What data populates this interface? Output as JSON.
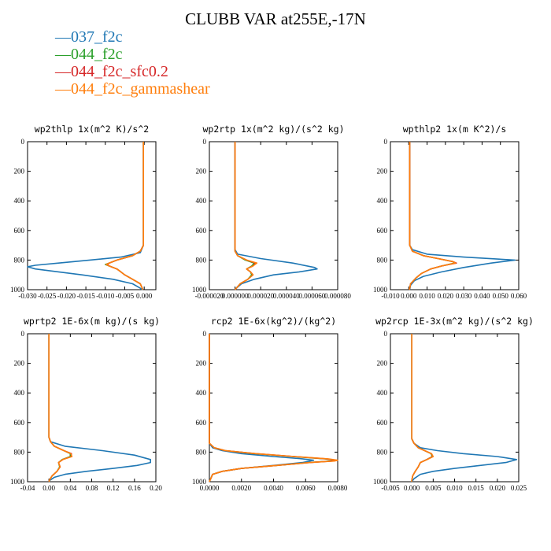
{
  "title": "CLUBB VAR at255E,-17N",
  "colors": {
    "037_f2c": "#1f77b4",
    "044_f2c": "#2ca02c",
    "044_f2c_sfc0.2": "#d62728",
    "044_f2c_gammashear": "#ff7f0e"
  },
  "legend": [
    {
      "name": "037_f2c",
      "color": "#1f77b4"
    },
    {
      "name": "044_f2c",
      "color": "#2ca02c"
    },
    {
      "name": "044_f2c_sfc0.2",
      "color": "#d62728"
    },
    {
      "name": "044_f2c_gammashear",
      "color": "#ff7f0e"
    }
  ],
  "chart_data": [
    {
      "type": "line",
      "title": "wp2thlp  1x(m^2 K)/s^2",
      "xlim": [
        -0.03,
        0.003
      ],
      "ylim": [
        1000,
        0
      ],
      "xticks": [
        "-0.030",
        "-0.025",
        "-0.020",
        "-0.015",
        "-0.010",
        "-0.005",
        "0.000"
      ],
      "xtick_values": [
        -0.03,
        -0.025,
        -0.02,
        -0.015,
        -0.01,
        -0.005,
        0.0
      ],
      "yticks": [
        0,
        200,
        400,
        600,
        800,
        1000
      ],
      "series": [
        {
          "name": "037_f2c",
          "y": [
            0,
            700,
            750,
            780,
            800,
            820,
            835,
            845,
            860,
            880,
            900,
            930,
            960,
            990,
            1000
          ],
          "x": [
            -0.0002,
            -0.0002,
            -0.001,
            -0.006,
            -0.014,
            -0.022,
            -0.028,
            -0.03,
            -0.028,
            -0.022,
            -0.016,
            -0.008,
            -0.003,
            -0.001,
            -0.0005
          ]
        },
        {
          "name": "044_f2c",
          "y": [
            0,
            700,
            740,
            770,
            800,
            820,
            830,
            840,
            860,
            880,
            900,
            930,
            960,
            990,
            1000
          ],
          "x": [
            -0.0002,
            -0.0002,
            -0.001,
            -0.003,
            -0.007,
            -0.009,
            -0.01,
            -0.009,
            -0.007,
            -0.006,
            -0.005,
            -0.003,
            -0.001,
            -0.0005,
            -0.0003
          ]
        },
        {
          "name": "044_f2c_sfc0.2",
          "y": [
            0,
            700,
            740,
            770,
            800,
            820,
            830,
            840,
            860,
            880,
            900,
            930,
            960,
            990,
            1000
          ],
          "x": [
            -0.0002,
            -0.0002,
            -0.001,
            -0.003,
            -0.007,
            -0.009,
            -0.0095,
            -0.009,
            -0.007,
            -0.006,
            -0.005,
            -0.003,
            -0.001,
            -0.0005,
            -0.0003
          ]
        },
        {
          "name": "044_f2c_gammashear",
          "y": [
            0,
            700,
            740,
            770,
            800,
            820,
            830,
            840,
            860,
            880,
            900,
            930,
            960,
            990,
            1000
          ],
          "x": [
            -0.0002,
            -0.0002,
            -0.001,
            -0.003,
            -0.007,
            -0.009,
            -0.0098,
            -0.009,
            -0.007,
            -0.006,
            -0.005,
            -0.003,
            -0.001,
            -0.0005,
            -0.0003
          ]
        }
      ]
    },
    {
      "type": "line",
      "title": "wp2rtp  1x(m^2 kg)/(s^2 kg)",
      "xlim": [
        -2e-05,
        8e-05
      ],
      "ylim": [
        1000,
        0
      ],
      "xticks": [
        "-0.000020",
        "0.000000",
        "0.000020",
        "0.000040",
        "0.000060",
        "0.000080"
      ],
      "xtick_values": [
        -2e-05,
        0.0,
        2e-05,
        4e-05,
        6e-05,
        8e-05
      ],
      "yticks": [
        0,
        200,
        400,
        600,
        800,
        1000
      ],
      "series": [
        {
          "name": "037_f2c",
          "y": [
            0,
            730,
            760,
            790,
            820,
            850,
            860,
            880,
            900,
            930,
            960,
            990,
            1000
          ],
          "x": [
            0.0,
            0.0,
            2e-06,
            2e-05,
            4.5e-05,
            6.2e-05,
            6.4e-05,
            5e-05,
            3e-05,
            1.5e-05,
            5e-06,
            1e-06,
            0.0
          ]
        },
        {
          "name": "044_f2c",
          "y": [
            0,
            740,
            770,
            800,
            820,
            840,
            860,
            880,
            900,
            930,
            960,
            990,
            1000
          ],
          "x": [
            0.0,
            0.0,
            2e-06,
            8e-06,
            1.5e-05,
            1.3e-05,
            9e-06,
            1.2e-05,
            1.3e-05,
            1e-05,
            4e-06,
            1e-06,
            0.0
          ]
        },
        {
          "name": "044_f2c_sfc0.2",
          "y": [
            0,
            740,
            770,
            800,
            820,
            840,
            860,
            880,
            900,
            930,
            960,
            990,
            1000
          ],
          "x": [
            0.0,
            0.0,
            2e-06,
            9e-06,
            1.6e-05,
            1.4e-05,
            9e-06,
            1.2e-05,
            1.4e-05,
            1e-05,
            4e-06,
            1e-06,
            0.0
          ]
        },
        {
          "name": "044_f2c_gammashear",
          "y": [
            0,
            740,
            770,
            800,
            820,
            840,
            860,
            880,
            900,
            930,
            960,
            990,
            1000
          ],
          "x": [
            0.0,
            0.0,
            2e-06,
            9e-06,
            1.7e-05,
            1.4e-05,
            9e-06,
            1.2e-05,
            1.4e-05,
            1e-05,
            4e-06,
            1e-06,
            0.0
          ]
        }
      ]
    },
    {
      "type": "line",
      "title": "wpthlp2  1x(m K^2)/s",
      "xlim": [
        -0.01,
        0.06
      ],
      "ylim": [
        1000,
        0
      ],
      "xticks": [
        "-0.010",
        "0.000",
        "0.010",
        "0.020",
        "0.030",
        "0.040",
        "0.050",
        "0.060"
      ],
      "xtick_values": [
        -0.01,
        0.0,
        0.01,
        0.02,
        0.03,
        0.04,
        0.05,
        0.06
      ],
      "yticks": [
        0,
        200,
        400,
        600,
        800,
        1000
      ],
      "series": [
        {
          "name": "037_f2c",
          "y": [
            0,
            700,
            730,
            760,
            780,
            800,
            820,
            850,
            880,
            910,
            940,
            970,
            1000
          ],
          "x": [
            0.0005,
            0.0005,
            0.002,
            0.01,
            0.03,
            0.058,
            0.045,
            0.03,
            0.018,
            0.008,
            0.003,
            0.001,
            0.0005
          ]
        },
        {
          "name": "044_f2c",
          "y": [
            0,
            700,
            740,
            770,
            790,
            810,
            820,
            840,
            860,
            890,
            920,
            960,
            990,
            1000
          ],
          "x": [
            0.0005,
            0.0005,
            0.002,
            0.008,
            0.016,
            0.024,
            0.025,
            0.018,
            0.012,
            0.007,
            0.004,
            0.001,
            0.0005,
            0.0003
          ]
        },
        {
          "name": "044_f2c_sfc0.2",
          "y": [
            0,
            700,
            740,
            770,
            790,
            810,
            820,
            840,
            860,
            890,
            920,
            960,
            990,
            1000
          ],
          "x": [
            0.0005,
            0.0005,
            0.002,
            0.008,
            0.016,
            0.024,
            0.026,
            0.018,
            0.012,
            0.007,
            0.004,
            0.001,
            0.0005,
            0.0003
          ]
        },
        {
          "name": "044_f2c_gammashear",
          "y": [
            0,
            700,
            740,
            770,
            790,
            810,
            820,
            840,
            860,
            890,
            920,
            960,
            990,
            1000
          ],
          "x": [
            0.0005,
            0.0005,
            0.002,
            0.008,
            0.016,
            0.024,
            0.0255,
            0.018,
            0.012,
            0.007,
            0.004,
            0.001,
            0.0005,
            0.0003
          ]
        }
      ]
    },
    {
      "type": "line",
      "title": "wprtp2  1E-6x(m kg)/(s kg)",
      "xlim": [
        -0.04,
        0.2
      ],
      "ylim": [
        1000,
        0
      ],
      "xticks": [
        "-0.04",
        "0.00",
        "0.04",
        "0.08",
        "0.12",
        "0.16",
        "0.20"
      ],
      "xtick_values": [
        -0.04,
        0.0,
        0.04,
        0.08,
        0.12,
        0.16,
        0.2
      ],
      "yticks": [
        0,
        200,
        400,
        600,
        800,
        1000
      ],
      "series": [
        {
          "name": "037_f2c",
          "y": [
            0,
            700,
            730,
            760,
            790,
            820,
            850,
            870,
            890,
            910,
            930,
            950,
            970,
            990,
            1000
          ],
          "x": [
            0.0,
            0.0,
            0.003,
            0.03,
            0.1,
            0.16,
            0.19,
            0.19,
            0.165,
            0.12,
            0.07,
            0.03,
            0.01,
            0.002,
            0.0
          ]
        },
        {
          "name": "044_f2c",
          "y": [
            0,
            700,
            730,
            760,
            790,
            810,
            830,
            850,
            870,
            900,
            930,
            960,
            990,
            1000
          ],
          "x": [
            0.0,
            0.0,
            0.003,
            0.01,
            0.028,
            0.04,
            0.04,
            0.025,
            0.018,
            0.02,
            0.015,
            0.006,
            0.001,
            0.0
          ]
        },
        {
          "name": "044_f2c_sfc0.2",
          "y": [
            0,
            700,
            730,
            760,
            790,
            810,
            830,
            850,
            870,
            900,
            930,
            960,
            990,
            1000
          ],
          "x": [
            0.0,
            0.0,
            0.003,
            0.01,
            0.028,
            0.042,
            0.042,
            0.026,
            0.018,
            0.021,
            0.015,
            0.006,
            0.001,
            0.0
          ]
        },
        {
          "name": "044_f2c_gammashear",
          "y": [
            0,
            700,
            730,
            760,
            790,
            810,
            830,
            850,
            870,
            900,
            930,
            960,
            990,
            1000
          ],
          "x": [
            0.0,
            0.0,
            0.003,
            0.01,
            0.028,
            0.041,
            0.043,
            0.026,
            0.018,
            0.021,
            0.015,
            0.006,
            0.001,
            0.0
          ]
        }
      ]
    },
    {
      "type": "line",
      "title": "rcp2  1E-6x(kg^2)/(kg^2)",
      "xlim": [
        0,
        0.008
      ],
      "ylim": [
        1000,
        0
      ],
      "xticks": [
        "0.0000",
        "0.0020",
        "0.0040",
        "0.0060",
        "0.0080"
      ],
      "xtick_values": [
        0.0,
        0.002,
        0.004,
        0.006,
        0.008
      ],
      "yticks": [
        0,
        200,
        400,
        600,
        800,
        1000
      ],
      "series": [
        {
          "name": "037_f2c",
          "y": [
            0,
            740,
            770,
            790,
            810,
            830,
            845,
            855,
            870,
            890,
            910,
            930,
            950,
            1000
          ],
          "x": [
            0.0,
            0.0,
            0.0002,
            0.0008,
            0.002,
            0.004,
            0.0058,
            0.0065,
            0.0058,
            0.004,
            0.002,
            0.0008,
            0.0002,
            0.0
          ]
        },
        {
          "name": "044_f2c",
          "y": [
            0,
            740,
            770,
            790,
            810,
            830,
            845,
            855,
            860,
            870,
            890,
            910,
            930,
            950,
            1000
          ],
          "x": [
            0.0,
            0.0,
            0.0003,
            0.001,
            0.0028,
            0.0052,
            0.0072,
            0.0078,
            0.0076,
            0.0062,
            0.0042,
            0.002,
            0.0008,
            0.0002,
            0.0
          ]
        },
        {
          "name": "044_f2c_sfc0.2",
          "y": [
            0,
            740,
            770,
            790,
            810,
            830,
            845,
            855,
            860,
            870,
            890,
            910,
            930,
            950,
            1000
          ],
          "x": [
            0.0,
            0.0,
            0.0003,
            0.001,
            0.0029,
            0.0053,
            0.0073,
            0.0079,
            0.0077,
            0.0063,
            0.0042,
            0.002,
            0.0008,
            0.0002,
            0.0
          ]
        },
        {
          "name": "044_f2c_gammashear",
          "y": [
            0,
            740,
            770,
            790,
            810,
            830,
            845,
            855,
            860,
            870,
            890,
            910,
            930,
            950,
            1000
          ],
          "x": [
            0.0,
            0.0,
            0.0003,
            0.001,
            0.0029,
            0.0053,
            0.0074,
            0.008,
            0.0078,
            0.0063,
            0.0042,
            0.002,
            0.0008,
            0.0002,
            0.0
          ]
        }
      ]
    },
    {
      "type": "line",
      "title": "wp2rcp  1E-3x(m^2 kg)/(s^2 kg)",
      "xlim": [
        -0.005,
        0.025
      ],
      "ylim": [
        1000,
        0
      ],
      "xticks": [
        "-0.005",
        "0.000",
        "0.005",
        "0.010",
        "0.015",
        "0.020",
        "0.025"
      ],
      "xtick_values": [
        -0.005,
        0.0,
        0.005,
        0.01,
        0.015,
        0.02,
        0.025
      ],
      "yticks": [
        0,
        200,
        400,
        600,
        800,
        1000
      ],
      "series": [
        {
          "name": "037_f2c",
          "y": [
            0,
            710,
            740,
            770,
            790,
            810,
            830,
            850,
            870,
            890,
            910,
            930,
            950,
            980,
            1000
          ],
          "x": [
            0.0,
            0.0,
            0.0005,
            0.002,
            0.006,
            0.012,
            0.02,
            0.0245,
            0.022,
            0.016,
            0.01,
            0.005,
            0.002,
            0.0005,
            0.0
          ]
        },
        {
          "name": "044_f2c",
          "y": [
            0,
            710,
            740,
            770,
            790,
            810,
            830,
            850,
            870,
            900,
            930,
            960,
            990,
            1000
          ],
          "x": [
            0.0,
            0.0,
            0.0005,
            0.0015,
            0.003,
            0.0045,
            0.0048,
            0.0035,
            0.002,
            0.0015,
            0.0008,
            0.0002,
            0.0,
            0.0
          ]
        },
        {
          "name": "044_f2c_sfc0.2",
          "y": [
            0,
            710,
            740,
            770,
            790,
            810,
            830,
            850,
            870,
            900,
            930,
            960,
            990,
            1000
          ],
          "x": [
            0.0,
            0.0,
            0.0005,
            0.0015,
            0.003,
            0.0046,
            0.0049,
            0.0035,
            0.002,
            0.0015,
            0.0008,
            0.0002,
            0.0,
            0.0
          ]
        },
        {
          "name": "044_f2c_gammashear",
          "y": [
            0,
            710,
            740,
            770,
            790,
            810,
            830,
            850,
            870,
            900,
            930,
            960,
            990,
            1000
          ],
          "x": [
            0.0,
            0.0,
            0.0005,
            0.0015,
            0.003,
            0.0046,
            0.005,
            0.0036,
            0.002,
            0.0015,
            0.0008,
            0.0002,
            0.0,
            0.0
          ]
        }
      ]
    }
  ]
}
